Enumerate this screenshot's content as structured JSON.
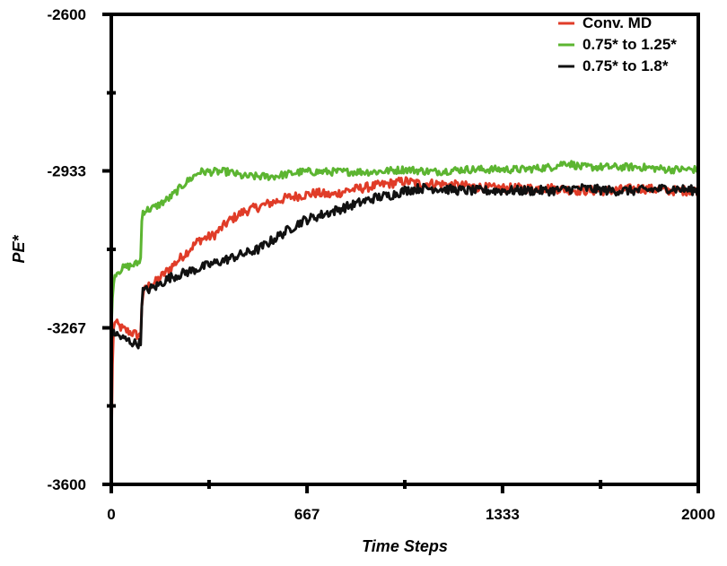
{
  "chart_data": {
    "type": "line",
    "title": "",
    "xlabel": "Time Steps",
    "ylabel": "PE*",
    "xlim": [
      0,
      2000
    ],
    "ylim": [
      -3600,
      -2600
    ],
    "x_ticks": [
      0,
      667,
      1333,
      2000
    ],
    "x_tick_labels": [
      "0",
      "667",
      "1333",
      "2000"
    ],
    "x_minor_ticks": [
      333,
      1000,
      1667
    ],
    "y_ticks": [
      -3600,
      -3267,
      -2933,
      -2600
    ],
    "y_tick_labels": [
      "-3600",
      "-3267",
      "-2933",
      "-2600"
    ],
    "y_minor_ticks": [
      -3433,
      -3100,
      -2767
    ],
    "grid": false,
    "legend": "top-right",
    "series": [
      {
        "name": "Conv. MD",
        "color": "#e03c28",
        "noise": 10,
        "points": [
          [
            0,
            -3530
          ],
          [
            5,
            -3300
          ],
          [
            10,
            -3250
          ],
          [
            20,
            -3260
          ],
          [
            40,
            -3270
          ],
          [
            80,
            -3280
          ],
          [
            100,
            -3285
          ],
          [
            105,
            -3200
          ],
          [
            120,
            -3180
          ],
          [
            150,
            -3170
          ],
          [
            200,
            -3140
          ],
          [
            250,
            -3110
          ],
          [
            300,
            -3080
          ],
          [
            350,
            -3070
          ],
          [
            400,
            -3040
          ],
          [
            450,
            -3020
          ],
          [
            500,
            -3010
          ],
          [
            550,
            -3000
          ],
          [
            600,
            -2990
          ],
          [
            650,
            -2985
          ],
          [
            700,
            -2980
          ],
          [
            750,
            -2985
          ],
          [
            800,
            -2975
          ],
          [
            850,
            -2970
          ],
          [
            900,
            -2965
          ],
          [
            950,
            -2960
          ],
          [
            1000,
            -2955
          ],
          [
            1050,
            -2960
          ],
          [
            1100,
            -2960
          ],
          [
            1200,
            -2965
          ],
          [
            1300,
            -2970
          ],
          [
            1400,
            -2970
          ],
          [
            1500,
            -2970
          ],
          [
            1600,
            -2975
          ],
          [
            1700,
            -2975
          ],
          [
            1800,
            -2970
          ],
          [
            1900,
            -2975
          ],
          [
            2000,
            -2975
          ]
        ]
      },
      {
        "name": "0.75* to 1.25*",
        "color": "#5cb531",
        "noise": 8,
        "points": [
          [
            0,
            -3270
          ],
          [
            6,
            -3170
          ],
          [
            15,
            -3150
          ],
          [
            40,
            -3140
          ],
          [
            90,
            -3130
          ],
          [
            100,
            -3120
          ],
          [
            105,
            -3020
          ],
          [
            150,
            -3010
          ],
          [
            200,
            -2990
          ],
          [
            250,
            -2960
          ],
          [
            300,
            -2935
          ],
          [
            350,
            -2935
          ],
          [
            400,
            -2935
          ],
          [
            450,
            -2945
          ],
          [
            500,
            -2945
          ],
          [
            550,
            -2945
          ],
          [
            600,
            -2940
          ],
          [
            650,
            -2935
          ],
          [
            700,
            -2935
          ],
          [
            800,
            -2935
          ],
          [
            900,
            -2935
          ],
          [
            1000,
            -2930
          ],
          [
            1100,
            -2935
          ],
          [
            1200,
            -2930
          ],
          [
            1300,
            -2930
          ],
          [
            1400,
            -2930
          ],
          [
            1500,
            -2925
          ],
          [
            1550,
            -2915
          ],
          [
            1600,
            -2925
          ],
          [
            1700,
            -2925
          ],
          [
            1800,
            -2925
          ],
          [
            1900,
            -2930
          ],
          [
            2000,
            -2930
          ]
        ]
      },
      {
        "name": "0.75* to 1.8*",
        "color": "#111111",
        "noise": 10,
        "points": [
          [
            0,
            -3300
          ],
          [
            5,
            -3270
          ],
          [
            15,
            -3280
          ],
          [
            40,
            -3290
          ],
          [
            80,
            -3300
          ],
          [
            100,
            -3300
          ],
          [
            105,
            -3190
          ],
          [
            150,
            -3180
          ],
          [
            200,
            -3160
          ],
          [
            250,
            -3150
          ],
          [
            300,
            -3140
          ],
          [
            350,
            -3130
          ],
          [
            400,
            -3120
          ],
          [
            450,
            -3110
          ],
          [
            500,
            -3100
          ],
          [
            550,
            -3080
          ],
          [
            600,
            -3060
          ],
          [
            650,
            -3040
          ],
          [
            700,
            -3030
          ],
          [
            750,
            -3020
          ],
          [
            800,
            -3010
          ],
          [
            850,
            -3000
          ],
          [
            900,
            -2990
          ],
          [
            950,
            -2985
          ],
          [
            1000,
            -2975
          ],
          [
            1050,
            -2970
          ],
          [
            1100,
            -2970
          ],
          [
            1200,
            -2975
          ],
          [
            1300,
            -2975
          ],
          [
            1400,
            -2975
          ],
          [
            1500,
            -2975
          ],
          [
            1600,
            -2970
          ],
          [
            1700,
            -2975
          ],
          [
            1800,
            -2975
          ],
          [
            1900,
            -2970
          ],
          [
            2000,
            -2975
          ]
        ]
      }
    ]
  }
}
